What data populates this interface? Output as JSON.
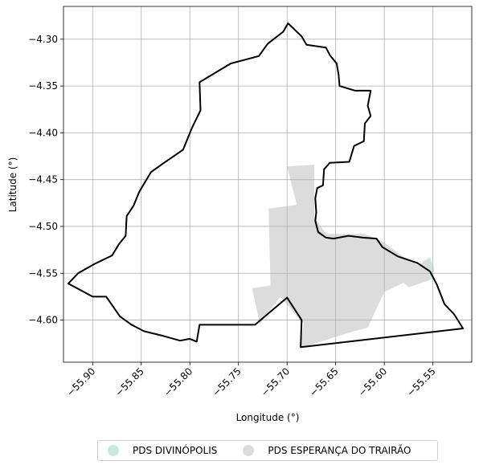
{
  "chart_data": {
    "type": "map",
    "xlabel": "Longitude (°)",
    "ylabel": "Latitude (°)",
    "xlim": [
      -55.93,
      -55.51
    ],
    "ylim": [
      -4.645,
      -4.265
    ],
    "xticks": [
      -55.9,
      -55.85,
      -55.8,
      -55.75,
      -55.7,
      -55.65,
      -55.6,
      -55.55
    ],
    "xtick_labels": [
      "−55.90",
      "−55.85",
      "−55.80",
      "−55.75",
      "−55.70",
      "−55.65",
      "−55.60",
      "−55.55"
    ],
    "yticks": [
      -4.3,
      -4.35,
      -4.4,
      -4.45,
      -4.5,
      -4.55,
      -4.6
    ],
    "ytick_labels": [
      "−4.30",
      "−4.35",
      "−4.40",
      "−4.45",
      "−4.50",
      "−4.55",
      "−4.60"
    ],
    "grid": true,
    "legend_placement": "bottom-center",
    "outline_color": "#000000",
    "regions": [
      {
        "name": "PDS DIVINÓPOLIS",
        "color": "#c8eadb",
        "coords": [
          [
            -55.56,
            -4.537
          ],
          [
            -55.553,
            -4.533
          ],
          [
            -55.549,
            -4.545
          ],
          [
            -55.549,
            -4.555
          ],
          [
            -55.555,
            -4.558
          ],
          [
            -55.559,
            -4.552
          ],
          [
            -55.562,
            -4.545
          ]
        ]
      },
      {
        "name": "PDS ESPERANÇA DO TRAIRÃO",
        "color": "#dcdcdc",
        "coords": [
          [
            -55.7,
            -4.436
          ],
          [
            -55.672,
            -4.434
          ],
          [
            -55.672,
            -4.49
          ],
          [
            -55.66,
            -4.508
          ],
          [
            -55.62,
            -4.508
          ],
          [
            -55.602,
            -4.516
          ],
          [
            -55.578,
            -4.534
          ],
          [
            -55.565,
            -4.54
          ],
          [
            -55.552,
            -4.537
          ],
          [
            -55.555,
            -4.558
          ],
          [
            -55.575,
            -4.565
          ],
          [
            -55.58,
            -4.56
          ],
          [
            -55.6,
            -4.57
          ],
          [
            -55.617,
            -4.608
          ],
          [
            -55.638,
            -4.614
          ],
          [
            -55.686,
            -4.63
          ],
          [
            -55.683,
            -4.604
          ],
          [
            -55.707,
            -4.575
          ],
          [
            -55.728,
            -4.604
          ],
          [
            -55.736,
            -4.566
          ],
          [
            -55.717,
            -4.563
          ],
          [
            -55.719,
            -4.481
          ],
          [
            -55.69,
            -4.477
          ]
        ]
      }
    ],
    "boundary": [
      [
        -55.733,
        -4.605
      ],
      [
        -55.7,
        -4.576
      ],
      [
        -55.685,
        -4.6
      ],
      [
        -55.686,
        -4.629
      ],
      [
        -55.519,
        -4.609
      ],
      [
        -55.528,
        -4.594
      ],
      [
        -55.538,
        -4.583
      ],
      [
        -55.546,
        -4.562
      ],
      [
        -55.553,
        -4.548
      ],
      [
        -55.566,
        -4.539
      ],
      [
        -55.586,
        -4.532
      ],
      [
        -55.602,
        -4.522
      ],
      [
        -55.608,
        -4.513
      ],
      [
        -55.622,
        -4.512
      ],
      [
        -55.637,
        -4.51
      ],
      [
        -55.652,
        -4.513
      ],
      [
        -55.66,
        -4.512
      ],
      [
        -55.668,
        -4.506
      ],
      [
        -55.671,
        -4.494
      ],
      [
        -55.67,
        -4.485
      ],
      [
        -55.671,
        -4.47
      ],
      [
        -55.669,
        -4.459
      ],
      [
        -55.663,
        -4.456
      ],
      [
        -55.662,
        -4.439
      ],
      [
        -55.656,
        -4.432
      ],
      [
        -55.636,
        -4.431
      ],
      [
        -55.631,
        -4.414
      ],
      [
        -55.621,
        -4.409
      ],
      [
        -55.62,
        -4.39
      ],
      [
        -55.614,
        -4.382
      ],
      [
        -55.617,
        -4.371
      ],
      [
        -55.614,
        -4.355
      ],
      [
        -55.63,
        -4.355
      ],
      [
        -55.646,
        -4.35
      ],
      [
        -55.647,
        -4.338
      ],
      [
        -55.649,
        -4.326
      ],
      [
        -55.656,
        -4.317
      ],
      [
        -55.66,
        -4.309
      ],
      [
        -55.68,
        -4.306
      ],
      [
        -55.685,
        -4.297
      ],
      [
        -55.699,
        -4.283
      ],
      [
        -55.704,
        -4.292
      ],
      [
        -55.72,
        -4.305
      ],
      [
        -55.729,
        -4.318
      ],
      [
        -55.758,
        -4.326
      ],
      [
        -55.79,
        -4.346
      ],
      [
        -55.789,
        -4.376
      ],
      [
        -55.798,
        -4.395
      ],
      [
        -55.807,
        -4.418
      ],
      [
        -55.828,
        -4.433
      ],
      [
        -55.84,
        -4.442
      ],
      [
        -55.852,
        -4.463
      ],
      [
        -55.858,
        -4.478
      ],
      [
        -55.865,
        -4.489
      ],
      [
        -55.866,
        -4.51
      ],
      [
        -55.873,
        -4.519
      ],
      [
        -55.88,
        -4.531
      ],
      [
        -55.898,
        -4.54
      ],
      [
        -55.915,
        -4.55
      ],
      [
        -55.925,
        -4.561
      ],
      [
        -55.9,
        -4.575
      ],
      [
        -55.886,
        -4.575
      ],
      [
        -55.878,
        -4.587
      ],
      [
        -55.872,
        -4.596
      ],
      [
        -55.86,
        -4.605
      ],
      [
        -55.847,
        -4.612
      ],
      [
        -55.827,
        -4.617
      ],
      [
        -55.81,
        -4.622
      ],
      [
        -55.8,
        -4.62
      ],
      [
        -55.793,
        -4.623
      ],
      [
        -55.79,
        -4.605
      ],
      [
        -55.733,
        -4.605
      ]
    ],
    "legend": [
      "PDS DIVINÓPOLIS",
      "PDS ESPERANÇA DO TRAIRÃO"
    ]
  }
}
